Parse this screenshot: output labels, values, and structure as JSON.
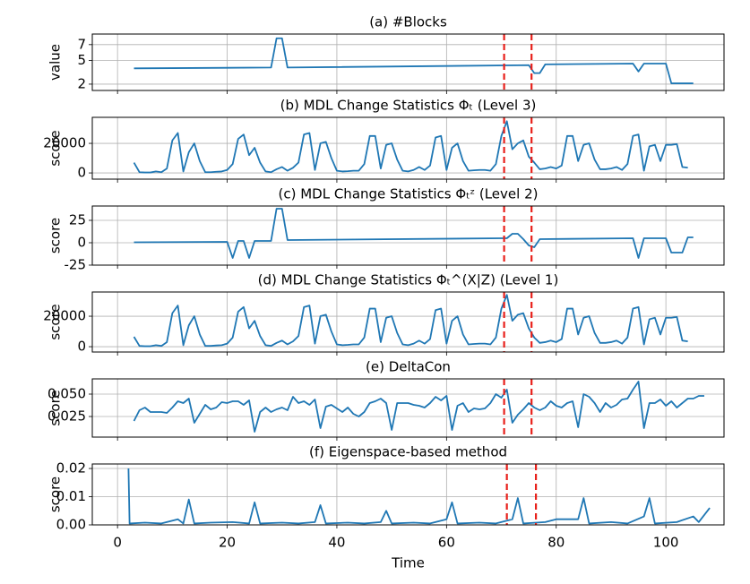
{
  "chart_data": [
    {
      "type": "line",
      "title": "(a) #Blocks",
      "ylabel": "value",
      "color": "#1f77b4",
      "grid": true,
      "x": [
        3,
        28,
        29,
        30,
        31,
        75,
        76,
        77,
        78,
        94,
        95,
        96,
        100,
        101,
        105
      ],
      "values": [
        4.0,
        4.1,
        7.8,
        7.8,
        4.1,
        4.4,
        3.4,
        3.4,
        4.5,
        4.6,
        3.6,
        4.6,
        4.6,
        2.1,
        2.1
      ],
      "xlim": [
        -4.6,
        110.6
      ],
      "xticks": [
        0,
        20,
        40,
        60,
        80,
        100
      ],
      "ylim": [
        1.2,
        8.34
      ],
      "yticks": [
        2,
        5,
        7
      ],
      "vlines": [
        70.5,
        75.5
      ],
      "vline_color": "#e8201a"
    },
    {
      "type": "line",
      "title": "(b) MDL Change Statistics Φₜ (Level 3)",
      "ylabel": "score",
      "color": "#1f77b4",
      "grid": true,
      "x": [
        3,
        4,
        5,
        6,
        7,
        8,
        9,
        10,
        11,
        12,
        13,
        14,
        15,
        16,
        17,
        18,
        19,
        20,
        21,
        22,
        23,
        24,
        25,
        26,
        27,
        28,
        29,
        30,
        31,
        32,
        33,
        34,
        35,
        36,
        37,
        38,
        39,
        40,
        41,
        42,
        43,
        44,
        45,
        46,
        47,
        48,
        49,
        50,
        51,
        52,
        53,
        54,
        55,
        56,
        57,
        58,
        59,
        60,
        61,
        62,
        63,
        64,
        65,
        66,
        67,
        68,
        69,
        70,
        71,
        72,
        73,
        74,
        75,
        76,
        77,
        78,
        79,
        80,
        81,
        82,
        83,
        84,
        85,
        86,
        87,
        88,
        89,
        90,
        91,
        92,
        93,
        94,
        95,
        96,
        97,
        98,
        99,
        100,
        101,
        102,
        103,
        104
      ],
      "values": [
        7000,
        500,
        300,
        300,
        1000,
        500,
        3000,
        22000,
        27000,
        1000,
        14000,
        20000,
        8000,
        500,
        500,
        800,
        1000,
        2000,
        6000,
        23000,
        26000,
        12000,
        17000,
        7000,
        1000,
        500,
        2500,
        4000,
        1500,
        3500,
        7000,
        26000,
        27000,
        2000,
        20000,
        21000,
        10000,
        1500,
        1000,
        1200,
        1500,
        1500,
        6000,
        25000,
        25000,
        3000,
        19000,
        20000,
        9000,
        1500,
        1000,
        2000,
        4000,
        2000,
        5000,
        24000,
        25000,
        2000,
        17000,
        20000,
        8000,
        1500,
        1800,
        2000,
        2000,
        1500,
        6000,
        25000,
        35000,
        16000,
        20000,
        22000,
        11000,
        7000,
        2500,
        3000,
        4000,
        3000,
        5000,
        25000,
        25000,
        8000,
        19000,
        20000,
        9000,
        2500,
        2500,
        3000,
        4000,
        2000,
        6000,
        25000,
        26000,
        1500,
        18000,
        19000,
        8000,
        19000,
        19000,
        19500,
        4000,
        3500
      ],
      "xlim": [
        -4.6,
        110.6
      ],
      "xticks": [
        0,
        20,
        40,
        60,
        80,
        100
      ],
      "ylim": [
        -4200,
        37600
      ],
      "yticks": [
        0,
        20000
      ],
      "vlines": [
        70.5,
        75.5
      ],
      "vline_color": "#e8201a"
    },
    {
      "type": "line",
      "title": "(c) MDL Change Statistics Φₜᶻ (Level 2)",
      "ylabel": "score",
      "color": "#1f77b4",
      "grid": true,
      "x": [
        3,
        20,
        21,
        22,
        23,
        24,
        25,
        28,
        29,
        30,
        31,
        70,
        71,
        72,
        73,
        74,
        75,
        76,
        77,
        94,
        95,
        96,
        100,
        101,
        102,
        103,
        104,
        105
      ],
      "values": [
        0.5,
        1,
        -17,
        2,
        2,
        -17,
        2,
        2,
        38,
        38,
        3,
        5,
        5,
        10,
        10,
        4,
        -3,
        -5,
        4,
        5,
        -17,
        5,
        5,
        -11,
        -11,
        -11,
        6,
        6
      ],
      "xlim": [
        -4.6,
        110.6
      ],
      "xticks": [
        0,
        20,
        40,
        60,
        80,
        100
      ],
      "ylim": [
        -25,
        41
      ],
      "yticks": [
        -25,
        0,
        25
      ],
      "vlines": [
        70.5,
        75.5
      ],
      "vline_color": "#e8201a"
    },
    {
      "type": "line",
      "title": "(d) MDL Change Statistics Φₜ^(X|Z) (Level 1)",
      "ylabel": "score",
      "color": "#1f77b4",
      "grid": true,
      "x": [
        3,
        4,
        5,
        6,
        7,
        8,
        9,
        10,
        11,
        12,
        13,
        14,
        15,
        16,
        17,
        18,
        19,
        20,
        21,
        22,
        23,
        24,
        25,
        26,
        27,
        28,
        29,
        30,
        31,
        32,
        33,
        34,
        35,
        36,
        37,
        38,
        39,
        40,
        41,
        42,
        43,
        44,
        45,
        46,
        47,
        48,
        49,
        50,
        51,
        52,
        53,
        54,
        55,
        56,
        57,
        58,
        59,
        60,
        61,
        62,
        63,
        64,
        65,
        66,
        67,
        68,
        69,
        70,
        71,
        72,
        73,
        74,
        75,
        76,
        77,
        78,
        79,
        80,
        81,
        82,
        83,
        84,
        85,
        86,
        87,
        88,
        89,
        90,
        91,
        92,
        93,
        94,
        95,
        96,
        97,
        98,
        99,
        100,
        101,
        102,
        103,
        104
      ],
      "values": [
        6500,
        500,
        300,
        300,
        1000,
        500,
        3000,
        22000,
        27000,
        1000,
        14000,
        20000,
        8000,
        500,
        500,
        800,
        1000,
        2000,
        6000,
        23000,
        26000,
        12000,
        17000,
        7000,
        1000,
        500,
        2500,
        4000,
        1500,
        3500,
        7000,
        26000,
        27000,
        2000,
        20000,
        21000,
        10000,
        1500,
        1000,
        1200,
        1500,
        1500,
        6000,
        25000,
        25000,
        3000,
        19000,
        20000,
        9000,
        1500,
        1000,
        2000,
        4000,
        2000,
        5000,
        24000,
        25000,
        2000,
        17000,
        20000,
        8000,
        1500,
        1800,
        2000,
        2000,
        1500,
        6000,
        25000,
        34000,
        17000,
        21000,
        22000,
        12000,
        6000,
        2500,
        3000,
        4000,
        3000,
        5000,
        25000,
        25000,
        8000,
        19000,
        20000,
        9000,
        2500,
        2500,
        3000,
        4000,
        2000,
        6000,
        25000,
        26000,
        1500,
        18000,
        19000,
        8000,
        19000,
        19000,
        19500,
        4000,
        3500
      ],
      "xlim": [
        -4.6,
        110.6
      ],
      "xticks": [
        0,
        20,
        40,
        60,
        80,
        100
      ],
      "ylim": [
        -3500,
        35900
      ],
      "yticks": [
        0,
        20000
      ],
      "vlines": [
        70.5,
        75.5
      ],
      "vline_color": "#e8201a"
    },
    {
      "type": "line",
      "title": "(e) DeltaCon",
      "ylabel": "score",
      "color": "#1f77b4",
      "grid": true,
      "x": [
        3,
        4,
        5,
        6,
        7,
        8,
        9,
        10,
        11,
        12,
        13,
        14,
        15,
        16,
        17,
        18,
        19,
        20,
        21,
        22,
        23,
        24,
        25,
        26,
        27,
        28,
        29,
        30,
        31,
        32,
        33,
        34,
        35,
        36,
        37,
        38,
        39,
        40,
        41,
        42,
        43,
        44,
        45,
        46,
        47,
        48,
        49,
        50,
        51,
        52,
        53,
        54,
        55,
        56,
        57,
        58,
        59,
        60,
        61,
        62,
        63,
        64,
        65,
        66,
        67,
        68,
        69,
        70,
        71,
        72,
        73,
        74,
        75,
        76,
        77,
        78,
        79,
        80,
        81,
        82,
        83,
        84,
        85,
        86,
        87,
        88,
        89,
        90,
        91,
        92,
        93,
        94,
        95,
        96,
        97,
        98,
        99,
        100,
        101,
        102,
        103,
        104,
        105,
        106,
        107
      ],
      "values": [
        0.02,
        0.032,
        0.035,
        0.03,
        0.03,
        0.03,
        0.029,
        0.035,
        0.042,
        0.04,
        0.045,
        0.018,
        0.028,
        0.038,
        0.033,
        0.035,
        0.041,
        0.04,
        0.042,
        0.042,
        0.038,
        0.043,
        0.008,
        0.03,
        0.035,
        0.03,
        0.033,
        0.035,
        0.032,
        0.047,
        0.04,
        0.042,
        0.038,
        0.044,
        0.012,
        0.036,
        0.038,
        0.034,
        0.03,
        0.035,
        0.028,
        0.025,
        0.03,
        0.04,
        0.042,
        0.045,
        0.04,
        0.01,
        0.04,
        0.04,
        0.04,
        0.038,
        0.037,
        0.035,
        0.04,
        0.047,
        0.043,
        0.048,
        0.01,
        0.037,
        0.04,
        0.03,
        0.034,
        0.033,
        0.034,
        0.04,
        0.05,
        0.046,
        0.055,
        0.018,
        0.027,
        0.033,
        0.04,
        0.035,
        0.032,
        0.035,
        0.042,
        0.037,
        0.035,
        0.04,
        0.042,
        0.013,
        0.05,
        0.047,
        0.04,
        0.03,
        0.04,
        0.035,
        0.038,
        0.044,
        0.045,
        0.055,
        0.064,
        0.012,
        0.04,
        0.04,
        0.044,
        0.037,
        0.042,
        0.035,
        0.04,
        0.045,
        0.045,
        0.048,
        0.048
      ],
      "xlim": [
        -4.6,
        110.6
      ],
      "xticks": [
        0,
        20,
        40,
        60,
        80,
        100
      ],
      "ylim": [
        0.002,
        0.067
      ],
      "yticks": [
        0.025,
        {
          "value": 0.05,
          "label": "0.050"
        }
      ],
      "vlines": [
        70.5,
        75.5
      ],
      "vline_color": "#e8201a"
    },
    {
      "type": "line",
      "title": "(f) Eigenspace-based method",
      "ylabel": "score",
      "xlabel": "Time",
      "color": "#1f77b4",
      "grid": true,
      "x": [
        2,
        2.2,
        5,
        8,
        11,
        12,
        13,
        14,
        17,
        21,
        24,
        25,
        26,
        30,
        33,
        36,
        37,
        38,
        42,
        45,
        48,
        49,
        50,
        54,
        57,
        60,
        61,
        62,
        66,
        69,
        72,
        73,
        74,
        78,
        80,
        84,
        85,
        86,
        90,
        93,
        96,
        97,
        98,
        102,
        105,
        106,
        108
      ],
      "values": [
        0.02,
        0.0005,
        0.0008,
        0.0005,
        0.002,
        0.0005,
        0.009,
        0.0005,
        0.0008,
        0.001,
        0.0005,
        0.008,
        0.0005,
        0.0008,
        0.0005,
        0.001,
        0.007,
        0.0005,
        0.0008,
        0.0005,
        0.001,
        0.005,
        0.0005,
        0.0008,
        0.0005,
        0.002,
        0.008,
        0.0005,
        0.0008,
        0.0005,
        0.002,
        0.0095,
        0.0005,
        0.001,
        0.002,
        0.002,
        0.0095,
        0.0005,
        0.001,
        0.0005,
        0.003,
        0.0095,
        0.0005,
        0.001,
        0.003,
        0.001,
        0.006
      ],
      "xlim": [
        -4.6,
        110.6
      ],
      "xticks": [
        0,
        20,
        40,
        60,
        80,
        100
      ],
      "ylim": [
        0,
        0.0216
      ],
      "yticks": [
        {
          "value": 0,
          "label": "0.00"
        },
        0.01,
        0.02
      ],
      "vlines": [
        71,
        76.3
      ],
      "vline_color": "#e8201a"
    }
  ]
}
